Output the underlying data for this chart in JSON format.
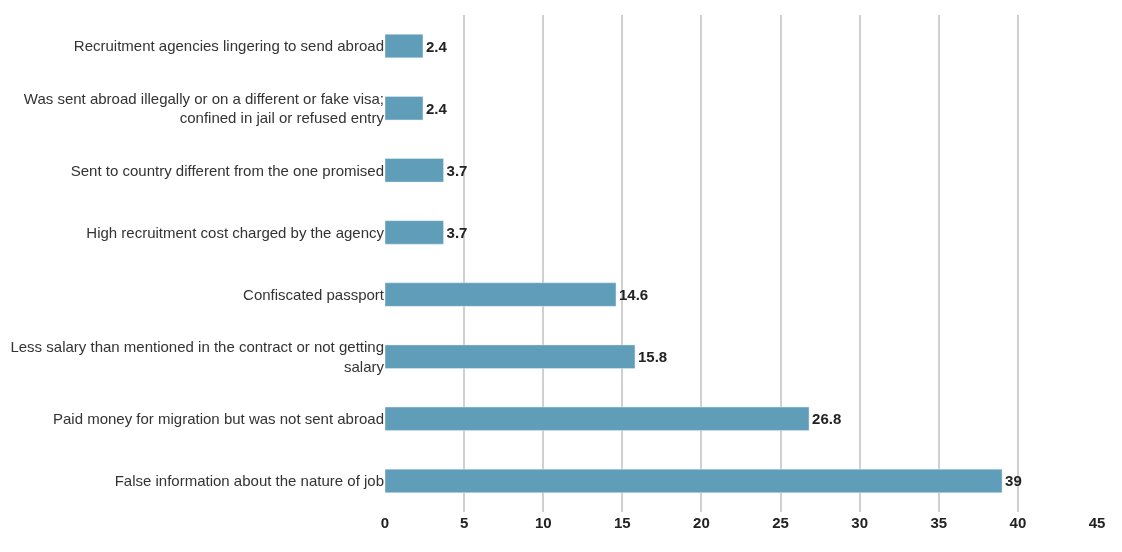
{
  "chart_data": {
    "type": "bar",
    "orientation": "horizontal",
    "categories": [
      "Recruitment agencies lingering to send abroad",
      "Was sent abroad illegally or on a different or fake visa; confined in jail or refused entry",
      "Sent to country different from the one promised",
      "High recruitment cost charged by the agency",
      "Confiscated passport",
      "Less salary than mentioned in the contract or not getting salary",
      "Paid money for migration but was not sent abroad",
      "False information about the nature of job"
    ],
    "values": [
      2.4,
      2.4,
      3.7,
      3.7,
      14.6,
      15.8,
      26.8,
      39
    ],
    "color": "#5f9db8",
    "data_labels": true,
    "grid": "x",
    "legend": false,
    "xlim": [
      0,
      45
    ],
    "xticks": [
      0,
      5,
      10,
      15,
      20,
      25,
      30,
      35,
      40,
      45
    ]
  }
}
